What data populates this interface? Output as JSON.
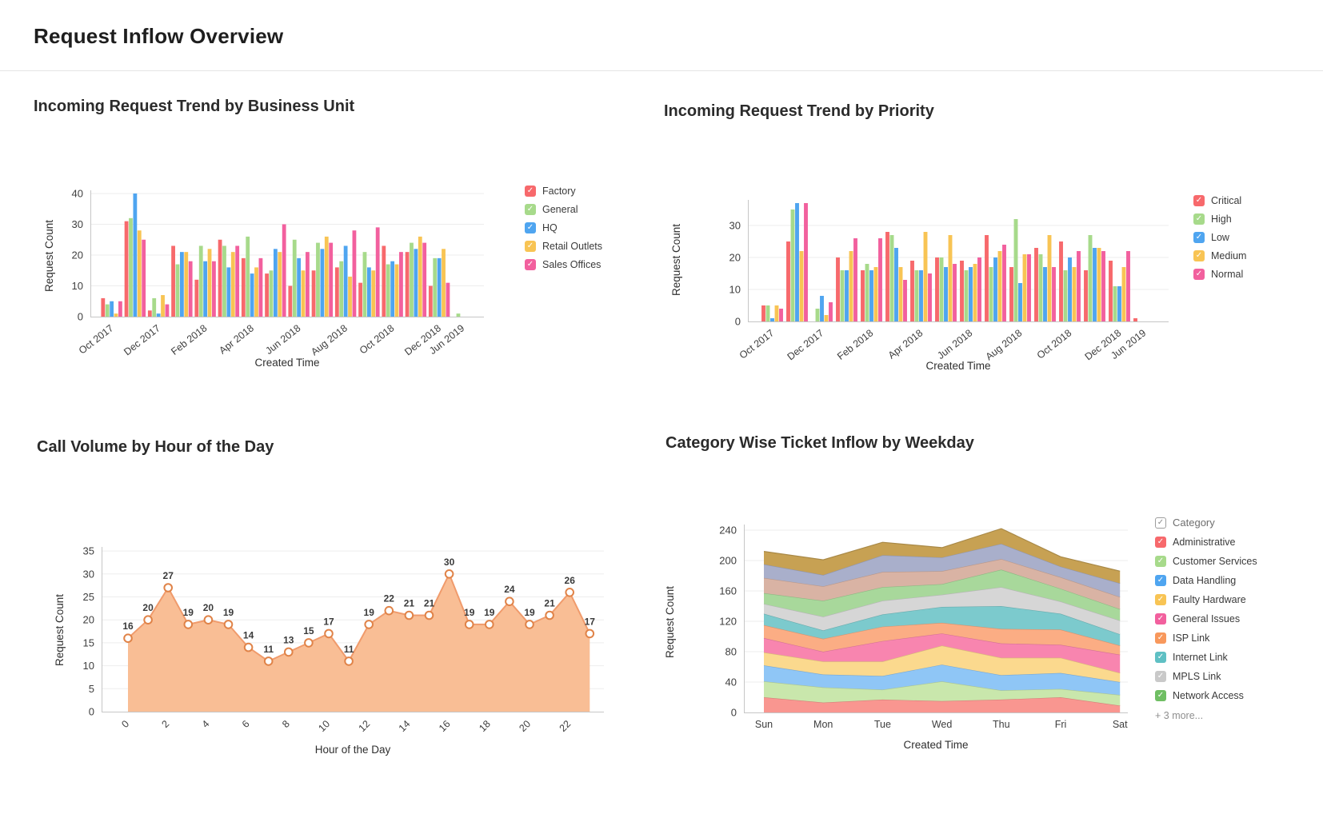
{
  "header": {
    "title": "Request Inflow Overview"
  },
  "chart_data": [
    {
      "id": "business-unit-trend",
      "type": "bar",
      "title": "Incoming Request Trend by Business Unit",
      "xlabel": "Created Time",
      "ylabel": "Request Count",
      "yticks": [
        0,
        10,
        20,
        30,
        40
      ],
      "ylim": [
        0,
        40
      ],
      "grid": true,
      "legend_position": "right",
      "categories": [
        "Oct 2017",
        "Nov 2017",
        "Dec 2017",
        "Jan 2018",
        "Feb 2018",
        "Mar 2018",
        "Apr 2018",
        "May 2018",
        "Jun 2018",
        "Jul 2018",
        "Aug 2018",
        "Sep 2018",
        "Oct 2018",
        "Nov 2018",
        "Dec 2018",
        "Jun 2019"
      ],
      "x_ticks_shown": [
        "Oct 2017",
        "Dec 2017",
        "Feb 2018",
        "Apr 2018",
        "Jun 2018",
        "Aug 2018",
        "Oct 2018",
        "Dec 2018",
        "Jun 2019"
      ],
      "series": [
        {
          "name": "Factory",
          "color": "#F7696C",
          "values": [
            6,
            31,
            2,
            23,
            12,
            25,
            19,
            14,
            10,
            15,
            16,
            11,
            23,
            21,
            10,
            0
          ]
        },
        {
          "name": "General",
          "color": "#A7DA8B",
          "values": [
            4,
            32,
            6,
            17,
            23,
            23,
            26,
            15,
            25,
            24,
            18,
            21,
            17,
            24,
            19,
            1
          ]
        },
        {
          "name": "HQ",
          "color": "#4FA5F0",
          "values": [
            5,
            40,
            1,
            21,
            18,
            16,
            14,
            22,
            19,
            22,
            23,
            16,
            18,
            22,
            19,
            0
          ]
        },
        {
          "name": "Retail Outlets",
          "color": "#F8C454",
          "values": [
            1,
            28,
            7,
            21,
            22,
            21,
            16,
            21,
            15,
            26,
            13,
            15,
            17,
            26,
            22,
            0
          ]
        },
        {
          "name": "Sales Offices",
          "color": "#F2609E",
          "values": [
            5,
            25,
            4,
            18,
            18,
            23,
            19,
            30,
            21,
            24,
            28,
            29,
            21,
            24,
            11,
            0
          ]
        }
      ]
    },
    {
      "id": "priority-trend",
      "type": "bar",
      "title": "Incoming Request Trend by Priority",
      "xlabel": "Created Time",
      "ylabel": "Request Count",
      "yticks": [
        0,
        10,
        20,
        30
      ],
      "ylim": [
        0,
        38
      ],
      "grid": true,
      "legend_position": "right",
      "categories": [
        "Oct 2017",
        "Nov 2017",
        "Dec 2017",
        "Jan 2018",
        "Feb 2018",
        "Mar 2018",
        "Apr 2018",
        "May 2018",
        "Jun 2018",
        "Jul 2018",
        "Aug 2018",
        "Sep 2018",
        "Oct 2018",
        "Nov 2018",
        "Dec 2018",
        "Jun 2019"
      ],
      "x_ticks_shown": [
        "Oct 2017",
        "Dec 2017",
        "Feb 2018",
        "Apr 2018",
        "Jun 2018",
        "Aug 2018",
        "Oct 2018",
        "Dec 2018",
        "Jun 2019"
      ],
      "series": [
        {
          "name": "Critical",
          "color": "#F7696C",
          "values": [
            5,
            25,
            0,
            20,
            16,
            28,
            19,
            20,
            19,
            27,
            17,
            23,
            25,
            16,
            19,
            1
          ]
        },
        {
          "name": "High",
          "color": "#A7DA8B",
          "values": [
            5,
            35,
            4,
            16,
            18,
            27,
            16,
            20,
            16,
            17,
            32,
            21,
            16,
            27,
            11,
            0
          ]
        },
        {
          "name": "Low",
          "color": "#4FA5F0",
          "values": [
            1,
            37,
            8,
            16,
            16,
            23,
            16,
            17,
            17,
            20,
            12,
            17,
            20,
            23,
            11,
            0
          ]
        },
        {
          "name": "Medium",
          "color": "#F8C454",
          "values": [
            5,
            22,
            2,
            22,
            17,
            17,
            28,
            27,
            18,
            22,
            21,
            27,
            17,
            23,
            17,
            0
          ]
        },
        {
          "name": "Normal",
          "color": "#F2609E",
          "values": [
            4,
            37,
            6,
            26,
            26,
            13,
            15,
            18,
            20,
            24,
            21,
            17,
            22,
            22,
            22,
            0
          ]
        }
      ]
    },
    {
      "id": "call-volume-by-hour",
      "type": "area",
      "title": "Call Volume by Hour of the Day",
      "xlabel": "Hour of the Day",
      "ylabel": "Request Count",
      "yticks": [
        0,
        5,
        10,
        15,
        20,
        25,
        30,
        35
      ],
      "ylim": [
        0,
        35
      ],
      "grid": true,
      "x": [
        0,
        1,
        2,
        3,
        4,
        5,
        6,
        7,
        8,
        9,
        10,
        11,
        12,
        13,
        14,
        15,
        16,
        17,
        18,
        19,
        20,
        21,
        22,
        23
      ],
      "x_ticks_shown": [
        0,
        2,
        4,
        6,
        8,
        10,
        12,
        14,
        16,
        18,
        20,
        22
      ],
      "values": [
        16,
        20,
        27,
        19,
        20,
        19,
        14,
        11,
        13,
        15,
        17,
        11,
        19,
        22,
        21,
        21,
        30,
        19,
        19,
        24,
        19,
        21,
        26,
        17
      ],
      "data_labels": true,
      "colors": {
        "fill": "#F9BE95",
        "line": "#F09B6C",
        "marker": "#E08348"
      }
    },
    {
      "id": "category-weekday-inflow",
      "type": "stacked_area",
      "title": "Category Wise Ticket Inflow by Weekday",
      "xlabel": "Created Time",
      "ylabel": "Request Count",
      "yticks": [
        0,
        40,
        80,
        120,
        160,
        200,
        240
      ],
      "ylim": [
        0,
        250
      ],
      "grid": true,
      "legend_position": "right",
      "legend_header": "Category",
      "legend_more": "+ 3 more...",
      "categories": [
        "Sun",
        "Mon",
        "Tue",
        "Wed",
        "Thu",
        "Fri",
        "Sat"
      ],
      "series": [
        {
          "name": "Administrative",
          "color": "#F99690",
          "legend_color": "#F7696C",
          "values": [
            20,
            13,
            17,
            15,
            17,
            20,
            9
          ]
        },
        {
          "name": "Customer Services",
          "color": "#C9E7AC",
          "legend_color": "#A7DA8B",
          "values": [
            21,
            20,
            13,
            26,
            12,
            11,
            14
          ]
        },
        {
          "name": "Data Handling",
          "color": "#8FC6F6",
          "legend_color": "#4FA5F0",
          "values": [
            21,
            17,
            18,
            22,
            20,
            21,
            17
          ]
        },
        {
          "name": "Faulty Hardware",
          "color": "#FBD98E",
          "legend_color": "#F8C454",
          "values": [
            17,
            17,
            19,
            25,
            23,
            20,
            12
          ]
        },
        {
          "name": "General Issues",
          "color": "#F885AF",
          "legend_color": "#F2609E",
          "values": [
            19,
            13,
            27,
            16,
            19,
            17,
            24
          ]
        },
        {
          "name": "ISP Link",
          "color": "#FBAD84",
          "legend_color": "#F8985C",
          "values": [
            17,
            17,
            19,
            14,
            19,
            20,
            12
          ]
        },
        {
          "name": "Internet Link",
          "color": "#7CCACD",
          "legend_color": "#5FC0C4",
          "values": [
            15,
            11,
            16,
            21,
            30,
            21,
            15
          ]
        },
        {
          "name": "MPLS Link",
          "color": "#D6D6D6",
          "legend_color": "#C9C9C9",
          "values": [
            13,
            18,
            18,
            16,
            25,
            16,
            18
          ]
        },
        {
          "name": "Network Access",
          "color": "#A8D89B",
          "legend_color": "#6FBE63",
          "values": [
            14,
            21,
            18,
            14,
            23,
            17,
            15
          ]
        },
        {
          "name": "",
          "in_legend": false,
          "color": "#D9B3A4",
          "values": [
            20,
            19,
            20,
            17,
            14,
            15,
            16
          ]
        },
        {
          "name": "",
          "in_legend": false,
          "color": "#A9AFCB",
          "values": [
            18,
            15,
            22,
            18,
            20,
            14,
            18
          ]
        },
        {
          "name": "",
          "in_legend": false,
          "color": "#C7A153",
          "values": [
            17,
            20,
            17,
            13,
            20,
            13,
            16
          ]
        }
      ]
    }
  ]
}
